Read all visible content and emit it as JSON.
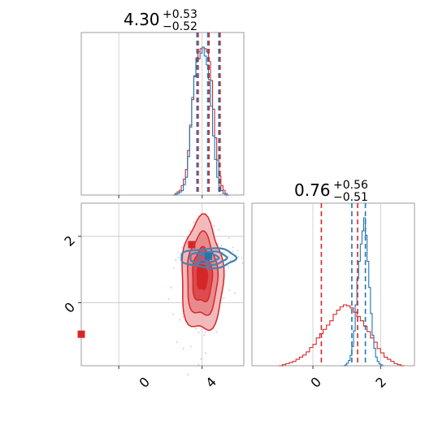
{
  "colors": {
    "blue": "#1f77b4",
    "red": "#d62728",
    "red_fill": "#e88a8d",
    "axis": "#9e9e9e",
    "grid": "#c8c8c8"
  },
  "chart_data": [
    {
      "type": "histogram",
      "panel": "top-left",
      "title": {
        "value": "4.30",
        "plus": "+0.53",
        "minus": "−0.52"
      },
      "xlim": [
        -1.8,
        6
      ],
      "grid": true,
      "xticks": [
        0,
        4
      ],
      "quantile_lines": [
        3.78,
        4.3,
        4.83
      ],
      "series": [
        {
          "color": "red",
          "bin_start": 2.6,
          "bin_width": 0.1,
          "counts": [
            0,
            1,
            2,
            3,
            6,
            10,
            16,
            28,
            44,
            60,
            75,
            86,
            90,
            92,
            93,
            92,
            90,
            84,
            72,
            54,
            36,
            22,
            12,
            6,
            3,
            1,
            0
          ]
        },
        {
          "color": "blue",
          "bin_start": 2.6,
          "bin_width": 0.1,
          "counts": [
            0,
            0,
            1,
            2,
            3,
            7,
            12,
            26,
            46,
            66,
            80,
            90,
            92,
            96,
            100,
            94,
            88,
            78,
            60,
            40,
            24,
            12,
            6,
            3,
            1,
            0,
            0
          ]
        }
      ]
    },
    {
      "type": "contour",
      "panel": "bottom-left",
      "xlim": [
        -1.8,
        6
      ],
      "ylim": [
        -1.9,
        3.0
      ],
      "grid": true,
      "xticks": [
        0,
        4
      ],
      "yticks": [
        0,
        2
      ],
      "xticklabels": [
        "0",
        "4"
      ],
      "yticklabels": [
        "0",
        "2"
      ],
      "series": [
        {
          "name": "",
          "color": "red",
          "center": [
            4.0,
            0.8
          ],
          "sigma": [
            0.5,
            0.85
          ]
        },
        {
          "name": "",
          "color": "blue",
          "center": [
            4.3,
            1.35
          ],
          "sigma": [
            0.55,
            0.12
          ]
        }
      ],
      "markers": [
        {
          "x": 3.5,
          "y": 1.75,
          "color": "red"
        },
        {
          "x": 4.3,
          "y": 1.4,
          "color": "blue"
        },
        {
          "x": -1.8,
          "y": -0.95,
          "color": "red"
        }
      ]
    },
    {
      "type": "histogram",
      "panel": "bottom-right",
      "title": {
        "value": "0.76",
        "plus": "+0.56",
        "minus": "−0.51"
      },
      "xlim": [
        -1.8,
        3.0
      ],
      "grid": true,
      "xticks": [
        0,
        2
      ],
      "xticklabels": [
        "0",
        "2"
      ],
      "quantile_lines_red": [
        0.25,
        1.32
      ],
      "quantile_lines_blue": [
        1.15,
        1.55
      ],
      "series": [
        {
          "color": "red",
          "bin_start": -1.0,
          "bin_width": 0.1,
          "counts": [
            0,
            1,
            2,
            3,
            4,
            6,
            8,
            10,
            13,
            17,
            20,
            26,
            30,
            34,
            38,
            42,
            48,
            52,
            55,
            57,
            56,
            54,
            50,
            46,
            42,
            37,
            32,
            26,
            22,
            16,
            12,
            8,
            6,
            4,
            2,
            1,
            0
          ]
        },
        {
          "color": "blue",
          "bin_start": 0.9,
          "bin_width": 0.05,
          "counts": [
            0,
            1,
            3,
            6,
            12,
            22,
            40,
            70,
            100,
            120,
            140,
            155,
            170,
            150,
            120,
            90,
            60,
            35,
            20,
            10,
            5,
            2,
            1,
            0
          ]
        }
      ]
    }
  ]
}
